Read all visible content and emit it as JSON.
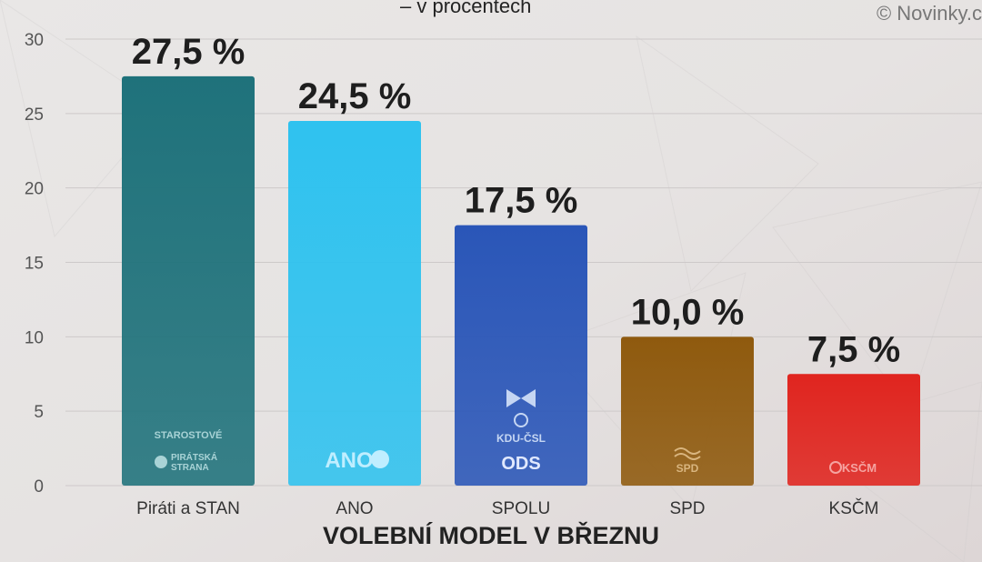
{
  "header": {
    "subtitle": "– v procentech",
    "source": "© Novinky.c"
  },
  "chart_data": {
    "type": "bar",
    "title": "",
    "subtitle": "– v procentech",
    "xlabel": "VOLEBNÍ MODEL V BŘEZNU",
    "ylabel": "",
    "ylim": [
      0,
      30
    ],
    "yticks": [
      0,
      5,
      10,
      15,
      20,
      25,
      30
    ],
    "categories": [
      "Piráti a STAN",
      "ANO",
      "SPOLU",
      "SPD",
      "KSČM"
    ],
    "values": [
      27.5,
      24.5,
      17.5,
      10.0,
      7.5
    ],
    "value_labels": [
      "27,5 %",
      "24,5 %",
      "17,5 %",
      "10,0 %",
      "7,5 %"
    ],
    "colors": [
      "#1f727b",
      "#2fc2ef",
      "#2a56b8",
      "#8f5a0e",
      "#e0251f"
    ],
    "grid": true,
    "logos": [
      [
        "STAROSTOVÉ",
        "PIRÁTSKÁ",
        "STRANA"
      ],
      [
        "ANO"
      ],
      [
        "KDU-ČSL",
        "ODS"
      ],
      [
        "SPD"
      ],
      [
        "KSČM"
      ]
    ]
  }
}
